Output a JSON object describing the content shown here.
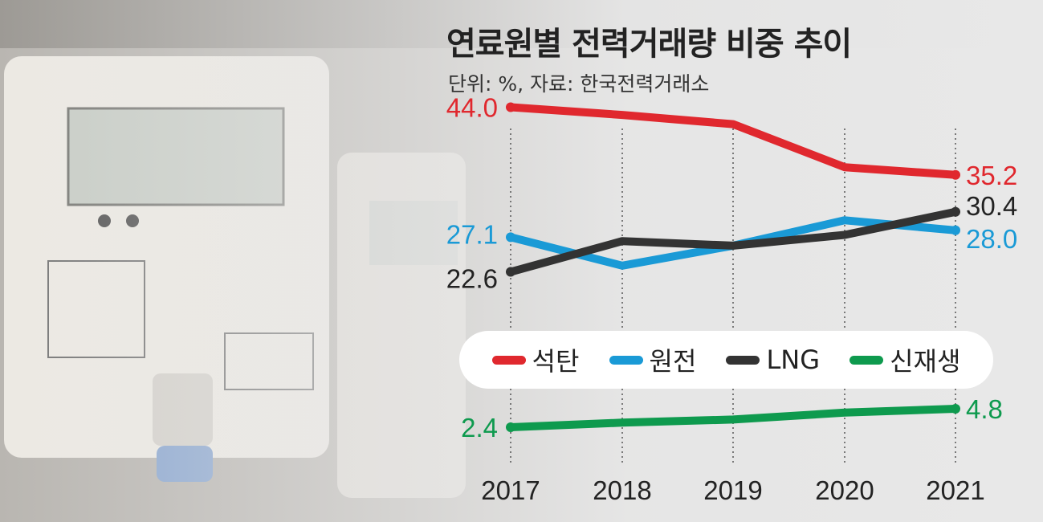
{
  "title": "연료원별 전력거래량 비중 추이",
  "subtitle": "단위: %, 자료: 한국전력거래소",
  "chart_data": {
    "type": "line",
    "title": "연료원별 전력거래량 비중 추이",
    "x": [
      "2017",
      "2018",
      "2019",
      "2020",
      "2021"
    ],
    "series": [
      {
        "name": "석탄",
        "color": "#e0282e",
        "values": [
          44.0,
          43.0,
          41.8,
          36.2,
          35.2
        ],
        "labels": {
          "first": "44.0",
          "last": "35.2"
        }
      },
      {
        "name": "원전",
        "color": "#1a9ad6",
        "values": [
          27.1,
          23.4,
          26.0,
          29.3,
          28.0
        ],
        "labels": {
          "first": "27.1",
          "last": "28.0"
        }
      },
      {
        "name": "LNG",
        "color": "#333333",
        "values": [
          22.6,
          26.6,
          26.0,
          27.4,
          30.4
        ],
        "labels": {
          "first": "22.6",
          "last": "30.4"
        }
      },
      {
        "name": "신재생",
        "color": "#0e9a4e",
        "values": [
          2.4,
          3.0,
          3.4,
          4.3,
          4.8
        ],
        "labels": {
          "first": "2.4",
          "last": "4.8"
        }
      }
    ],
    "ylim": [
      0,
      50
    ],
    "grid": "vertical dotted",
    "legend": "middle"
  }
}
